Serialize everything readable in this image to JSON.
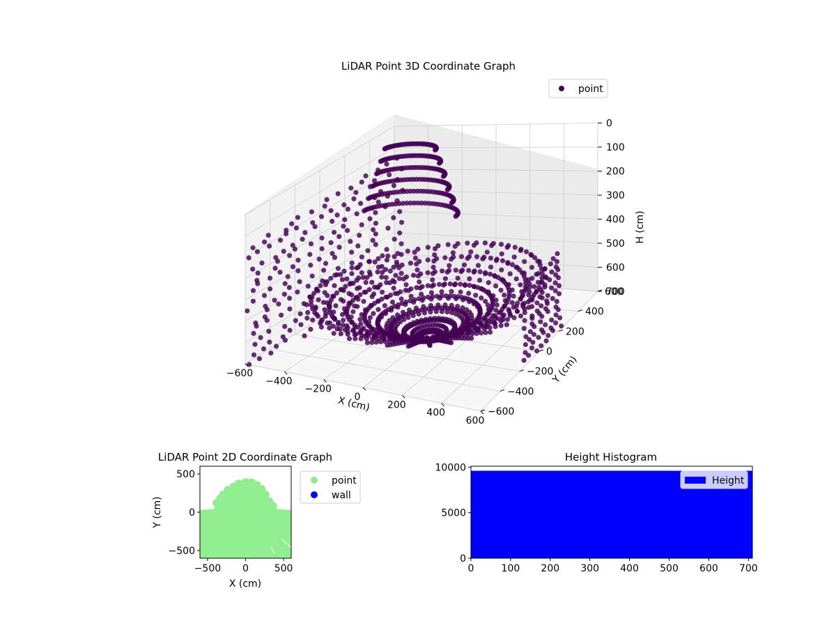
{
  "colors": {
    "point3d": "#440154",
    "point2d": "#90ee90",
    "wall": "#0000ff",
    "hist": "#0000ff",
    "pane": "#f2f2f2",
    "grid": "#cccccc"
  },
  "chart_data": [
    {
      "type": "scatter",
      "title": "LiDAR Point 3D Coordinate Graph",
      "projection": "3d",
      "xlabel": "X (cm)",
      "ylabel": "Y (cm)",
      "zlabel": "H (cm)",
      "xlim": [
        -600,
        600
      ],
      "ylim": [
        -600,
        600
      ],
      "zlim": [
        0,
        700
      ],
      "z_axis_inverted": true,
      "xticks": [
        "−600",
        "−400",
        "−200",
        "0",
        "200",
        "400",
        "600"
      ],
      "yticks": [
        "−600",
        "−400",
        "−200",
        "0",
        "200",
        "400",
        "600"
      ],
      "zticks": [
        "0",
        "100",
        "200",
        "300",
        "400",
        "500",
        "600",
        "700"
      ],
      "legend": {
        "position": "top-right",
        "entries": [
          "point"
        ]
      },
      "series": [
        {
          "name": "point",
          "rings": [
            {
              "radius": 60,
              "height": 700
            },
            {
              "radius": 120,
              "height": 680
            },
            {
              "radius": 180,
              "height": 650
            },
            {
              "radius": 240,
              "height": 620
            },
            {
              "radius": 300,
              "height": 590
            },
            {
              "radius": 380,
              "height": 560
            },
            {
              "radius": 460,
              "height": 530
            },
            {
              "radius": 540,
              "height": 500
            }
          ],
          "wall_left": {
            "x": -600,
            "y_range": [
              -600,
              600
            ],
            "h_range": [
              150,
              700
            ]
          },
          "wall_right": {
            "x": 560,
            "y_range": [
              -100,
              250
            ],
            "h_range": [
              400,
              700
            ]
          },
          "dome": {
            "center": [
              -300,
              300
            ],
            "radius": 260,
            "h_range": [
              0,
              350
            ]
          }
        }
      ]
    },
    {
      "type": "scatter",
      "title": "LiDAR Point 2D Coordinate Graph",
      "xlabel": "X (cm)",
      "ylabel": "Y (cm)",
      "xlim": [
        -600,
        600
      ],
      "ylim": [
        -600,
        600
      ],
      "xticks": [
        "−500",
        "0",
        "500"
      ],
      "yticks": [
        "−500",
        "0",
        "500"
      ],
      "legend": {
        "position": "outside-right",
        "entries": [
          "point",
          "wall"
        ]
      },
      "series": [
        {
          "name": "point",
          "outline": [
            [
              -600,
              30
            ],
            [
              -420,
              40
            ],
            [
              -380,
              120
            ],
            [
              -330,
              180
            ],
            [
              -290,
              230
            ],
            [
              -230,
              290
            ],
            [
              -160,
              330
            ],
            [
              -90,
              370
            ],
            [
              0,
              390
            ],
            [
              80,
              385
            ],
            [
              150,
              350
            ],
            [
              210,
              300
            ],
            [
              260,
              230
            ],
            [
              310,
              140
            ],
            [
              360,
              80
            ],
            [
              420,
              40
            ],
            [
              600,
              30
            ],
            [
              600,
              -600
            ],
            [
              -600,
              -600
            ]
          ]
        },
        {
          "name": "wall",
          "values": []
        }
      ]
    },
    {
      "type": "bar",
      "title": "Height Histogram",
      "xlim": [
        0,
        710
      ],
      "ylim": [
        0,
        10100
      ],
      "xticks": [
        "0",
        "100",
        "200",
        "300",
        "400",
        "500",
        "600",
        "700"
      ],
      "yticks": [
        "0",
        "5000",
        "10000"
      ],
      "legend": {
        "position": "top-right",
        "entries": [
          "Height"
        ]
      },
      "series": [
        {
          "name": "Height",
          "bin_range": [
            0,
            710
          ],
          "count": 9600
        }
      ]
    }
  ]
}
